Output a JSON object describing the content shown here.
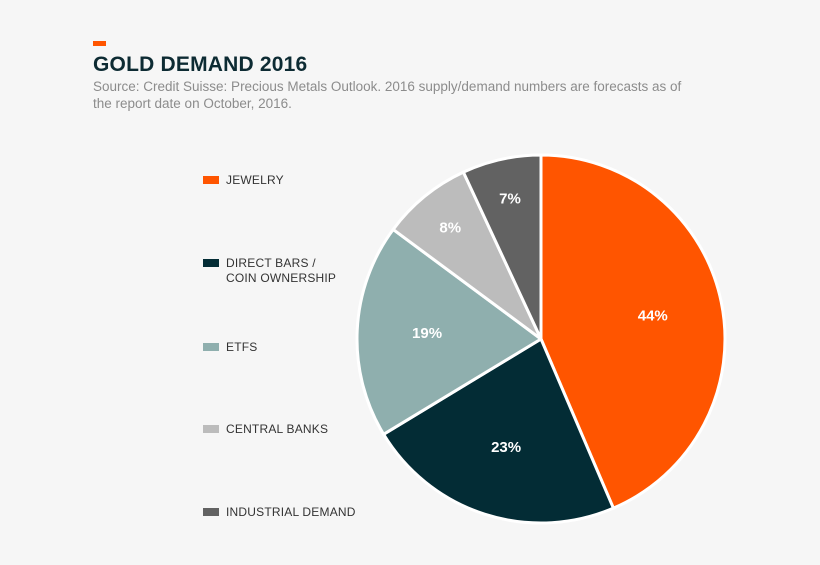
{
  "header": {
    "title": "GOLD DEMAND 2016",
    "subtitle": "Source: Credit Suisse: Precious Metals Outlook. 2016 supply/demand numbers are forecasts as of the report date on October, 2016."
  },
  "colors": {
    "accent": "#ff5500",
    "background": "#f6f6f6"
  },
  "chart_data": {
    "type": "pie",
    "title": "GOLD DEMAND 2016",
    "legend_position": "left",
    "slices": [
      {
        "name": "JEWELRY",
        "value": 44,
        "label": "44%",
        "color": "#ff5500"
      },
      {
        "name": "DIRECT BARS /\nCOIN OWNERSHIP",
        "value": 23,
        "label": "23%",
        "color": "#032c35"
      },
      {
        "name": "ETFS",
        "value": 19,
        "label": "19%",
        "color": "#8fafae"
      },
      {
        "name": "CENTRAL BANKS",
        "value": 8,
        "label": "8%",
        "color": "#bcbcbc"
      },
      {
        "name": "INDUSTRIAL DEMAND",
        "value": 7,
        "label": "7%",
        "color": "#626262"
      }
    ]
  }
}
